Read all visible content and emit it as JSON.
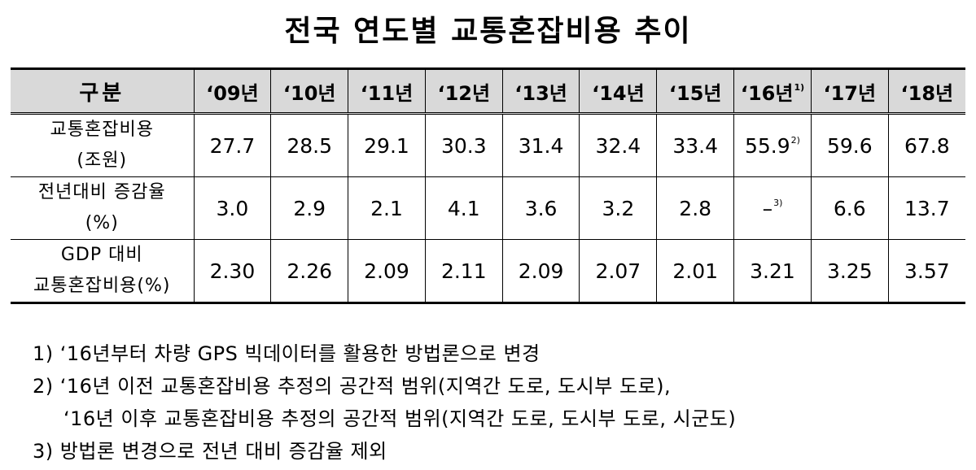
{
  "title": "전국 연도별 교통혼잡비용 추이",
  "table": {
    "corner_header": "구분",
    "years": [
      {
        "label": "‘09년",
        "note": ""
      },
      {
        "label": "‘10년",
        "note": ""
      },
      {
        "label": "‘11년",
        "note": ""
      },
      {
        "label": "‘12년",
        "note": ""
      },
      {
        "label": "‘13년",
        "note": ""
      },
      {
        "label": "‘14년",
        "note": ""
      },
      {
        "label": "‘15년",
        "note": ""
      },
      {
        "label": "‘16년",
        "note": "1)"
      },
      {
        "label": "‘17년",
        "note": ""
      },
      {
        "label": "‘18년",
        "note": ""
      }
    ],
    "rows": [
      {
        "label_line1": "교통혼잡비용",
        "label_line2": "(조원)",
        "cells": [
          {
            "value": "27.7",
            "note": ""
          },
          {
            "value": "28.5",
            "note": ""
          },
          {
            "value": "29.1",
            "note": ""
          },
          {
            "value": "30.3",
            "note": ""
          },
          {
            "value": "31.4",
            "note": ""
          },
          {
            "value": "32.4",
            "note": ""
          },
          {
            "value": "33.4",
            "note": ""
          },
          {
            "value": "55.9",
            "note": "2)"
          },
          {
            "value": "59.6",
            "note": ""
          },
          {
            "value": "67.8",
            "note": ""
          }
        ]
      },
      {
        "label_line1": "전년대비 증감율",
        "label_line2": "(%)",
        "cells": [
          {
            "value": "3.0",
            "note": ""
          },
          {
            "value": "2.9",
            "note": ""
          },
          {
            "value": "2.1",
            "note": ""
          },
          {
            "value": "4.1",
            "note": ""
          },
          {
            "value": "3.6",
            "note": ""
          },
          {
            "value": "3.2",
            "note": ""
          },
          {
            "value": "2.8",
            "note": ""
          },
          {
            "value": "–",
            "note": "3)"
          },
          {
            "value": "6.6",
            "note": ""
          },
          {
            "value": "13.7",
            "note": ""
          }
        ]
      },
      {
        "label_line1": "GDP 대비",
        "label_line2": "교통혼잡비용(%)",
        "cells": [
          {
            "value": "2.30",
            "note": ""
          },
          {
            "value": "2.26",
            "note": ""
          },
          {
            "value": "2.09",
            "note": ""
          },
          {
            "value": "2.11",
            "note": ""
          },
          {
            "value": "2.09",
            "note": ""
          },
          {
            "value": "2.07",
            "note": ""
          },
          {
            "value": "2.01",
            "note": ""
          },
          {
            "value": "3.21",
            "note": ""
          },
          {
            "value": "3.25",
            "note": ""
          },
          {
            "value": "3.57",
            "note": ""
          }
        ]
      }
    ]
  },
  "notes": [
    "1) ‘16년부터 차량 GPS 빅데이터를 활용한 방법론으로 변경",
    "2) ‘16년 이전 교통혼잡비용 추정의 공간적 범위(지역간 도로, 도시부 도로),",
    "‘16년 이후 교통혼잡비용 추정의 공간적 범위(지역간 도로, 도시부 도로, 시군도)",
    "3) 방법론 변경으로 전년 대비 증감율 제외"
  ]
}
